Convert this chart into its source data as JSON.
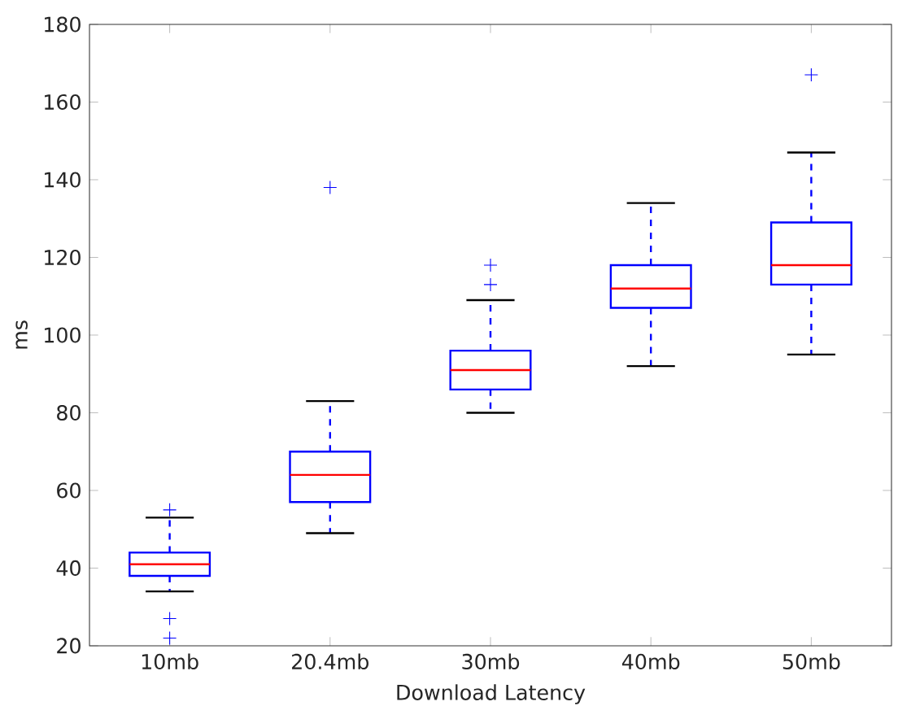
{
  "chart_data": {
    "type": "box",
    "xlabel": "Download Latency",
    "ylabel": "ms",
    "categories": [
      "10mb",
      "20.4mb",
      "30mb",
      "40mb",
      "50mb"
    ],
    "boxes": [
      {
        "low": 34,
        "q1": 38,
        "median": 41,
        "q3": 44,
        "high": 53,
        "outliers": [
          55,
          27,
          22
        ]
      },
      {
        "low": 49,
        "q1": 57,
        "median": 64,
        "q3": 70,
        "high": 83,
        "outliers": [
          138
        ]
      },
      {
        "low": 80,
        "q1": 86,
        "median": 91,
        "q3": 96,
        "high": 109,
        "outliers": [
          113,
          118
        ]
      },
      {
        "low": 92,
        "q1": 107,
        "median": 112,
        "q3": 118,
        "high": 134
      },
      {
        "low": 95,
        "q1": 113,
        "median": 118,
        "q3": 129,
        "high": 147,
        "outliers": [
          167
        ]
      }
    ],
    "color": "#0000ff",
    "ylim": [
      20,
      180
    ],
    "yticks": [
      20,
      40,
      60,
      80,
      100,
      120,
      140,
      160,
      180
    ],
    "grid": false
  }
}
